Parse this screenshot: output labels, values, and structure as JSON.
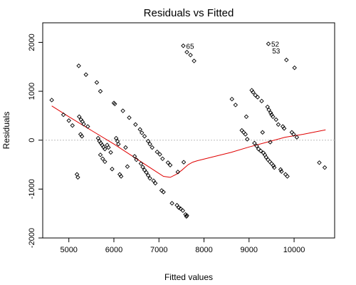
{
  "chart_data": {
    "type": "scatter",
    "title": "Residuals vs Fitted",
    "xlabel": "Fitted values",
    "ylabel": "Residuals",
    "xlim": [
      4420,
      10900
    ],
    "ylim": [
      -2000,
      2400
    ],
    "xticks": [
      5000,
      6000,
      7000,
      8000,
      9000,
      10000
    ],
    "yticks": [
      -2000,
      -1000,
      0,
      1000,
      2000
    ],
    "xtick_labels": [
      "5000",
      "6000",
      "7000",
      "8000",
      "9000",
      "10000"
    ],
    "ytick_labels": [
      "-2000",
      "-1000",
      "0",
      "1000",
      "2000"
    ],
    "reference_line": {
      "y": 0,
      "style": "dotted",
      "color": "#bdbdbd"
    },
    "point_marker": "open-diamond",
    "points": [
      {
        "x": 4620,
        "y": 820
      },
      {
        "x": 4880,
        "y": 520
      },
      {
        "x": 5000,
        "y": 400
      },
      {
        "x": 5080,
        "y": 300
      },
      {
        "x": 5180,
        "y": -700
      },
      {
        "x": 5200,
        "y": -760
      },
      {
        "x": 5220,
        "y": 1520
      },
      {
        "x": 5230,
        "y": 480
      },
      {
        "x": 5270,
        "y": 420
      },
      {
        "x": 5300,
        "y": 380
      },
      {
        "x": 5330,
        "y": 330
      },
      {
        "x": 5260,
        "y": 120
      },
      {
        "x": 5290,
        "y": 80
      },
      {
        "x": 5380,
        "y": 1340
      },
      {
        "x": 5420,
        "y": 280
      },
      {
        "x": 5620,
        "y": 1180
      },
      {
        "x": 5700,
        "y": 1000
      },
      {
        "x": 5650,
        "y": 40
      },
      {
        "x": 5680,
        "y": -20
      },
      {
        "x": 5710,
        "y": -60
      },
      {
        "x": 5740,
        "y": -100
      },
      {
        "x": 5770,
        "y": -140
      },
      {
        "x": 5800,
        "y": -180
      },
      {
        "x": 5700,
        "y": -300
      },
      {
        "x": 5750,
        "y": -380
      },
      {
        "x": 5800,
        "y": -440
      },
      {
        "x": 5850,
        "y": -100
      },
      {
        "x": 5880,
        "y": -150
      },
      {
        "x": 5930,
        "y": -250
      },
      {
        "x": 5960,
        "y": -590
      },
      {
        "x": 6000,
        "y": 760
      },
      {
        "x": 6020,
        "y": 740
      },
      {
        "x": 6050,
        "y": 40
      },
      {
        "x": 6080,
        "y": -20
      },
      {
        "x": 6100,
        "y": -80
      },
      {
        "x": 6130,
        "y": -700
      },
      {
        "x": 6160,
        "y": -740
      },
      {
        "x": 6200,
        "y": 600
      },
      {
        "x": 6260,
        "y": -150
      },
      {
        "x": 6300,
        "y": -540
      },
      {
        "x": 6340,
        "y": 460
      },
      {
        "x": 6480,
        "y": 320
      },
      {
        "x": 6460,
        "y": -330
      },
      {
        "x": 6500,
        "y": -400
      },
      {
        "x": 6580,
        "y": 220
      },
      {
        "x": 6620,
        "y": 150
      },
      {
        "x": 6680,
        "y": 80
      },
      {
        "x": 6600,
        "y": -480
      },
      {
        "x": 6640,
        "y": -550
      },
      {
        "x": 6680,
        "y": -610
      },
      {
        "x": 6720,
        "y": -660
      },
      {
        "x": 6760,
        "y": -720
      },
      {
        "x": 6800,
        "y": -780
      },
      {
        "x": 6760,
        "y": -20
      },
      {
        "x": 6800,
        "y": -80
      },
      {
        "x": 6850,
        "y": -150
      },
      {
        "x": 6880,
        "y": -830
      },
      {
        "x": 6920,
        "y": -880
      },
      {
        "x": 6960,
        "y": -240
      },
      {
        "x": 7020,
        "y": -290
      },
      {
        "x": 7080,
        "y": -380
      },
      {
        "x": 7060,
        "y": -1030
      },
      {
        "x": 7100,
        "y": -1060
      },
      {
        "x": 7200,
        "y": -460
      },
      {
        "x": 7250,
        "y": -510
      },
      {
        "x": 7290,
        "y": -1290
      },
      {
        "x": 7420,
        "y": -650
      },
      {
        "x": 7400,
        "y": -1330
      },
      {
        "x": 7440,
        "y": -1380
      },
      {
        "x": 7480,
        "y": -1400
      },
      {
        "x": 7530,
        "y": -1440
      },
      {
        "x": 7590,
        "y": -1520
      },
      {
        "x": 7610,
        "y": -1560
      },
      {
        "x": 7620,
        "y": -1540
      },
      {
        "x": 7550,
        "y": -450
      },
      {
        "x": 7540,
        "y": 1930
      },
      {
        "x": 7620,
        "y": 1800
      },
      {
        "x": 7700,
        "y": 1740
      },
      {
        "x": 7780,
        "y": 1620
      },
      {
        "x": 8620,
        "y": 840
      },
      {
        "x": 8700,
        "y": 720
      },
      {
        "x": 8840,
        "y": 200
      },
      {
        "x": 8880,
        "y": 160
      },
      {
        "x": 8920,
        "y": 120
      },
      {
        "x": 8940,
        "y": 480
      },
      {
        "x": 8960,
        "y": 20
      },
      {
        "x": 9060,
        "y": 1020
      },
      {
        "x": 9090,
        "y": 980
      },
      {
        "x": 9120,
        "y": -60
      },
      {
        "x": 9140,
        "y": 920
      },
      {
        "x": 9170,
        "y": -120
      },
      {
        "x": 9190,
        "y": 880
      },
      {
        "x": 9210,
        "y": -180
      },
      {
        "x": 9260,
        "y": -220
      },
      {
        "x": 9280,
        "y": 800
      },
      {
        "x": 9300,
        "y": 160
      },
      {
        "x": 9320,
        "y": -260
      },
      {
        "x": 9350,
        "y": -300
      },
      {
        "x": 9380,
        "y": -350
      },
      {
        "x": 9410,
        "y": 680
      },
      {
        "x": 9420,
        "y": -400
      },
      {
        "x": 9440,
        "y": 620
      },
      {
        "x": 9460,
        "y": -440
      },
      {
        "x": 9480,
        "y": 560
      },
      {
        "x": 9500,
        "y": 520
      },
      {
        "x": 9500,
        "y": -480
      },
      {
        "x": 9530,
        "y": 480
      },
      {
        "x": 9540,
        "y": -520
      },
      {
        "x": 9560,
        "y": -560
      },
      {
        "x": 9470,
        "y": -40
      },
      {
        "x": 9430,
        "y": 1970
      },
      {
        "x": 9600,
        "y": 420
      },
      {
        "x": 9650,
        "y": 320
      },
      {
        "x": 9700,
        "y": -600
      },
      {
        "x": 9720,
        "y": -640
      },
      {
        "x": 9750,
        "y": 280
      },
      {
        "x": 9780,
        "y": 240
      },
      {
        "x": 9810,
        "y": -700
      },
      {
        "x": 9830,
        "y": 1640
      },
      {
        "x": 9850,
        "y": -740
      },
      {
        "x": 9950,
        "y": 160
      },
      {
        "x": 9990,
        "y": 120
      },
      {
        "x": 10010,
        "y": 1480
      },
      {
        "x": 10060,
        "y": 60
      },
      {
        "x": 10560,
        "y": -460
      },
      {
        "x": 10680,
        "y": -560
      }
    ],
    "point_labels": [
      {
        "x": 7540,
        "y": 1930,
        "text": "65"
      },
      {
        "x": 9430,
        "y": 1970,
        "text": "52"
      },
      {
        "x": 9450,
        "y": 1830,
        "text": "53"
      }
    ],
    "smooth_line": {
      "color": "#e00000",
      "x": [
        4620,
        5000,
        5500,
        6000,
        6500,
        6900,
        7100,
        7250,
        7380,
        7500,
        7650,
        7750,
        7850,
        8200,
        8600,
        9000,
        9400,
        9800,
        10200,
        10700
      ],
      "y": [
        700,
        480,
        200,
        -80,
        -380,
        -620,
        -740,
        -760,
        -700,
        -620,
        -500,
        -450,
        -420,
        -340,
        -250,
        -140,
        -40,
        60,
        120,
        210
      ]
    }
  }
}
